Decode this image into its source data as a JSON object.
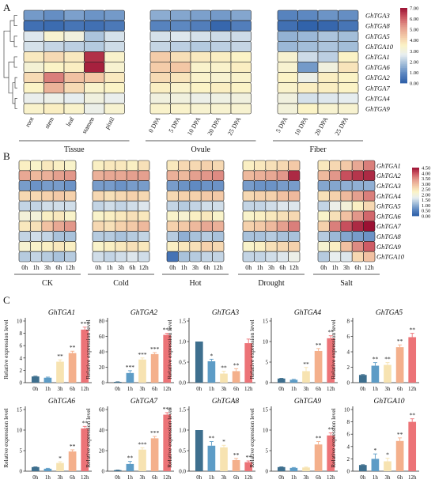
{
  "panels": {
    "A": "A",
    "B": "B",
    "C": "C"
  },
  "colors": {
    "scale": [
      "#2c5ea8",
      "#5b86c0",
      "#9fbbd8",
      "#e8eef0",
      "#fbf3c6",
      "#f3c8a6",
      "#e39a8c",
      "#cc5762",
      "#9b1133"
    ],
    "bars": [
      "#3e6f8e",
      "#5d9cc6",
      "#f7e3b1",
      "#f4b08c",
      "#ec7377"
    ],
    "cell_border": "#222222"
  },
  "panelA": {
    "genes": [
      "GhTGA3",
      "GhTGA8",
      "GhTGA5",
      "GhTGA10",
      "GhTGA1",
      "GhTGA6",
      "GhTGA2",
      "GhTGA7",
      "GhTGA4",
      "GhTGA9"
    ],
    "groups": [
      {
        "name": "Tissue",
        "columns": [
          "root",
          "stem",
          "leaf",
          "stamen",
          "pistil"
        ]
      },
      {
        "name": "Ovule",
        "columns": [
          "0 DPA",
          "5 DPA",
          "10 DPA",
          "20 DPA",
          "25 DPA"
        ]
      },
      {
        "name": "Fiber",
        "columns": [
          "5 DPA",
          "10 DPA",
          "20 DPA",
          "25 DPA"
        ]
      }
    ],
    "legend_ticks": [
      "7.00",
      "6.00",
      "5.00",
      "4.00",
      "3.00",
      "2.00",
      "1.00",
      "0.00"
    ],
    "legend_range": [
      0,
      7
    ]
  },
  "panelB": {
    "genes": [
      "GhTGA1",
      "GhTGA2",
      "GhTGA3",
      "GhTGA4",
      "GhTGA5",
      "GhTGA6",
      "GhTGA7",
      "GhTGA8",
      "GhTGA9",
      "GhTGA10"
    ],
    "groups": [
      "CK",
      "Cold",
      "Hot",
      "Drought",
      "Salt"
    ],
    "time_labels": [
      "0h",
      "1h",
      "3h",
      "6h",
      "12h"
    ],
    "legend_ticks": [
      "4.50",
      "4.00",
      "3.50",
      "3.00",
      "2.50",
      "2.00",
      "1.50",
      "1.00",
      "0.50",
      "0.00"
    ],
    "legend_range": [
      0,
      4.5
    ]
  },
  "panelC": {
    "ylabel": "Relative expression level",
    "time_labels": [
      "0h",
      "1h",
      "3h",
      "6h",
      "12h"
    ]
  },
  "chart_data": [
    {
      "type": "heatmap",
      "panel": "A",
      "rows": [
        "GhTGA3",
        "GhTGA8",
        "GhTGA5",
        "GhTGA10",
        "GhTGA1",
        "GhTGA6",
        "GhTGA2",
        "GhTGA7",
        "GhTGA4",
        "GhTGA9"
      ],
      "columns": [
        "root",
        "stem",
        "leaf",
        "stamen",
        "pistil",
        "0 DPA",
        "5 DPA",
        "10 DPA",
        "20 DPA",
        "25 DPA",
        "5 DPA",
        "10 DPA",
        "20 DPA",
        "25 DPA"
      ],
      "range": [
        0,
        7
      ],
      "values": [
        [
          1.2,
          1.0,
          1.3,
          1.1,
          1.2,
          1.5,
          1.4,
          1.3,
          1.2,
          1.4,
          0.8,
          0.9,
          1.1,
          1.0
        ],
        [
          0.4,
          0.3,
          0.5,
          0.4,
          0.6,
          0.8,
          0.9,
          0.7,
          0.2,
          0.7,
          0.4,
          0.1,
          0.2,
          0.5
        ],
        [
          2.5,
          3.3,
          3.0,
          1.9,
          2.4,
          2.4,
          2.5,
          2.4,
          2.3,
          2.3,
          1.6,
          1.7,
          1.9,
          1.8
        ],
        [
          2.4,
          2.2,
          2.1,
          2.0,
          2.3,
          2.2,
          2.1,
          2.0,
          2.1,
          2.2,
          1.7,
          1.8,
          1.9,
          1.8
        ],
        [
          3.7,
          4.0,
          3.7,
          6.6,
          3.4,
          4.3,
          3.9,
          3.7,
          3.6,
          3.5,
          3.3,
          2.3,
          2.1,
          3.5
        ],
        [
          3.2,
          3.5,
          3.6,
          6.8,
          3.3,
          4.3,
          4.4,
          3.4,
          3.4,
          3.6,
          3.3,
          1.2,
          3.0,
          3.8
        ],
        [
          4.0,
          5.6,
          4.5,
          4.4,
          3.7,
          4.0,
          3.8,
          3.4,
          3.3,
          3.4,
          3.5,
          2.8,
          3.6,
          3.5
        ],
        [
          3.5,
          4.8,
          4.0,
          3.4,
          3.5,
          3.6,
          3.4,
          3.5,
          3.6,
          3.5,
          3.4,
          3.6,
          3.6,
          3.5
        ],
        [
          2.7,
          2.8,
          2.6,
          3.0,
          2.7,
          3.0,
          3.0,
          2.8,
          2.9,
          3.0,
          3.0,
          2.4,
          2.5,
          2.6
        ],
        [
          3.4,
          3.6,
          3.4,
          2.8,
          3.3,
          3.4,
          3.4,
          3.3,
          3.3,
          3.3,
          3.1,
          3.5,
          3.3,
          3.3
        ]
      ]
    },
    {
      "type": "heatmap",
      "panel": "B",
      "rows": [
        "GhTGA1",
        "GhTGA2",
        "GhTGA3",
        "GhTGA4",
        "GhTGA5",
        "GhTGA6",
        "GhTGA7",
        "GhTGA8",
        "GhTGA9",
        "GhTGA10"
      ],
      "range": [
        0,
        4.5
      ],
      "groups": [
        {
          "name": "CK",
          "values": [
            [
              2.3,
              2.2,
              2.4,
              2.3,
              2.2
            ],
            [
              3.2,
              3.0,
              3.1,
              3.3,
              3.4
            ],
            [
              0.8,
              0.7,
              0.8,
              0.8,
              0.7
            ],
            [
              2.6,
              2.6,
              2.7,
              2.8,
              2.7
            ],
            [
              1.4,
              1.4,
              1.5,
              1.5,
              1.5
            ],
            [
              2.0,
              2.0,
              2.3,
              2.4,
              2.2
            ],
            [
              2.4,
              2.5,
              2.9,
              3.2,
              3.4
            ],
            [
              1.4,
              1.5,
              1.4,
              1.2,
              1.2
            ],
            [
              2.1,
              2.2,
              2.3,
              2.4,
              2.3
            ],
            [
              1.3,
              1.4,
              1.3,
              1.2,
              1.3
            ]
          ]
        },
        {
          "name": "Cold",
          "values": [
            [
              2.3,
              2.4,
              2.4,
              2.3,
              2.5
            ],
            [
              3.1,
              3.2,
              3.2,
              3.3,
              3.3
            ],
            [
              0.8,
              0.8,
              0.7,
              0.8,
              0.8
            ],
            [
              2.6,
              2.5,
              2.6,
              2.7,
              2.6
            ],
            [
              1.4,
              1.5,
              1.4,
              1.5,
              1.6
            ],
            [
              2.2,
              2.3,
              2.4,
              2.5,
              2.4
            ],
            [
              2.6,
              2.5,
              2.7,
              2.8,
              3.0
            ],
            [
              1.3,
              1.3,
              1.2,
              1.3,
              1.4
            ],
            [
              2.2,
              2.3,
              2.4,
              2.5,
              2.4
            ],
            [
              1.5,
              1.4,
              1.5,
              1.6,
              1.5
            ]
          ]
        },
        {
          "name": "Hot",
          "values": [
            [
              2.4,
              2.6,
              2.6,
              2.7,
              2.6
            ],
            [
              3.1,
              3.0,
              3.3,
              3.4,
              3.5
            ],
            [
              0.8,
              0.7,
              0.6,
              0.7,
              0.7
            ],
            [
              2.6,
              2.7,
              2.7,
              2.8,
              2.8
            ],
            [
              1.4,
              1.3,
              1.4,
              1.5,
              1.5
            ],
            [
              2.2,
              2.1,
              2.3,
              2.4,
              2.2
            ],
            [
              2.7,
              2.8,
              3.0,
              3.2,
              3.1
            ],
            [
              1.3,
              1.0,
              1.2,
              1.3,
              1.2
            ],
            [
              2.3,
              2.4,
              2.5,
              2.7,
              2.6
            ],
            [
              0.3,
              1.2,
              1.3,
              1.4,
              1.4
            ]
          ]
        },
        {
          "name": "Drought",
          "values": [
            [
              2.3,
              2.4,
              2.5,
              2.6,
              2.8
            ],
            [
              3.0,
              3.1,
              3.2,
              3.4,
              4.3
            ],
            [
              0.8,
              0.7,
              0.7,
              0.8,
              0.8
            ],
            [
              2.6,
              2.7,
              2.7,
              2.9,
              3.0
            ],
            [
              1.4,
              1.4,
              1.5,
              1.6,
              1.6
            ],
            [
              2.2,
              2.3,
              2.4,
              2.5,
              2.6
            ],
            [
              2.7,
              2.8,
              3.0,
              3.3,
              3.6
            ],
            [
              1.2,
              1.2,
              1.3,
              1.2,
              1.2
            ],
            [
              2.2,
              2.3,
              2.5,
              2.6,
              2.7
            ],
            [
              1.4,
              1.4,
              1.5,
              1.6,
              1.8
            ]
          ]
        },
        {
          "name": "Salt",
          "values": [
            [
              2.4,
              2.6,
              2.8,
              3.2,
              3.6
            ],
            [
              3.0,
              3.4,
              4.0,
              4.2,
              4.3
            ],
            [
              0.9,
              0.9,
              1.0,
              1.0,
              1.0
            ],
            [
              2.5,
              2.7,
              3.0,
              3.3,
              3.6
            ],
            [
              1.4,
              1.8,
              2.0,
              2.3,
              2.6
            ],
            [
              2.2,
              2.5,
              2.9,
              3.4,
              3.8
            ],
            [
              2.7,
              3.6,
              4.0,
              4.3,
              4.5
            ],
            [
              1.3,
              1.1,
              0.9,
              0.8,
              0.7
            ],
            [
              2.1,
              2.3,
              2.9,
              3.5,
              3.9
            ],
            [
              1.3,
              1.7,
              1.6,
              2.6,
              2.9
            ]
          ]
        }
      ]
    },
    {
      "type": "bar",
      "panel": "C",
      "categories": [
        "0h",
        "1h",
        "3h",
        "6h",
        "12h"
      ],
      "ylabel": "Relative expression level",
      "charts": [
        {
          "title": "GhTGA1",
          "values": [
            1.0,
            0.8,
            3.4,
            4.8,
            8.6
          ],
          "errors": [
            0.05,
            0.1,
            0.3,
            0.3,
            0.4
          ],
          "sig": [
            "",
            "",
            "**",
            "**",
            "***"
          ],
          "ylim": [
            0,
            10
          ],
          "ticks": [
            0,
            2,
            4,
            6,
            8,
            10
          ]
        },
        {
          "title": "GhTGA2",
          "values": [
            1.0,
            12.5,
            30.0,
            37.0,
            62.0
          ],
          "errors": [
            0.1,
            3.0,
            2.0,
            2.0,
            2.0
          ],
          "sig": [
            "",
            "***",
            "***",
            "***",
            "***"
          ],
          "ylim": [
            0,
            80
          ],
          "ticks": [
            0,
            20,
            40,
            60,
            80
          ]
        },
        {
          "title": "GhTGA3",
          "values": [
            1.0,
            0.52,
            0.22,
            0.28,
            0.96
          ],
          "errors": [
            0.0,
            0.05,
            0.06,
            0.06,
            0.1
          ],
          "sig": [
            "",
            "*",
            "**",
            "**",
            ""
          ],
          "ylim": [
            0,
            1.5
          ],
          "ticks": [
            0.0,
            0.5,
            1.0,
            1.5
          ]
        },
        {
          "title": "GhTGA4",
          "values": [
            1.0,
            0.7,
            2.8,
            7.7,
            10.8
          ],
          "errors": [
            0.05,
            0.1,
            0.9,
            0.6,
            0.6
          ],
          "sig": [
            "",
            "",
            "**",
            "**",
            "**"
          ],
          "ylim": [
            0,
            15
          ],
          "ticks": [
            0,
            5,
            10,
            15
          ]
        },
        {
          "title": "GhTGA5",
          "values": [
            1.0,
            2.2,
            2.3,
            4.6,
            5.9
          ],
          "errors": [
            0.05,
            0.4,
            0.3,
            0.3,
            0.5
          ],
          "sig": [
            "",
            "**",
            "**",
            "**",
            "**"
          ],
          "ylim": [
            0,
            8
          ],
          "ticks": [
            0,
            2,
            4,
            6,
            8
          ]
        },
        {
          "title": "GhTGA6",
          "values": [
            1.0,
            0.6,
            2.0,
            4.8,
            10.4
          ],
          "errors": [
            0.05,
            0.1,
            0.3,
            0.4,
            0.5
          ],
          "sig": [
            "",
            "",
            "*",
            "**",
            "**"
          ],
          "ylim": [
            0,
            15
          ],
          "ticks": [
            0,
            5,
            10,
            15
          ]
        },
        {
          "title": "GhTGA7",
          "values": [
            1.0,
            7.0,
            21.0,
            32.0,
            55.0
          ],
          "errors": [
            0.1,
            2.5,
            1.8,
            1.8,
            2.0
          ],
          "sig": [
            "",
            "**",
            "***",
            "***",
            "***"
          ],
          "ylim": [
            0,
            60
          ],
          "ticks": [
            0,
            20,
            40,
            60
          ]
        },
        {
          "title": "GhTGA8",
          "values": [
            1.0,
            0.62,
            0.58,
            0.27,
            0.22
          ],
          "errors": [
            0.0,
            0.1,
            0.05,
            0.04,
            0.03
          ],
          "sig": [
            "",
            "**",
            "*",
            "**",
            "**"
          ],
          "ylim": [
            0,
            1.5
          ],
          "ticks": [
            0.0,
            0.5,
            1.0,
            1.5
          ]
        },
        {
          "title": "GhTGA9",
          "values": [
            1.0,
            0.8,
            0.9,
            6.5,
            8.7
          ],
          "errors": [
            0.05,
            0.1,
            0.1,
            0.7,
            0.6
          ],
          "sig": [
            "",
            "",
            "",
            "**",
            "**"
          ],
          "ylim": [
            0,
            15
          ],
          "ticks": [
            0,
            5,
            10,
            15
          ]
        },
        {
          "title": "GhTGA10",
          "values": [
            1.0,
            2.0,
            1.6,
            4.9,
            8.0
          ],
          "errors": [
            0.05,
            0.8,
            0.5,
            0.5,
            0.5
          ],
          "sig": [
            "",
            "*",
            "*",
            "**",
            "**"
          ],
          "ylim": [
            0,
            10
          ],
          "ticks": [
            0,
            2,
            4,
            6,
            8,
            10
          ]
        }
      ]
    }
  ]
}
